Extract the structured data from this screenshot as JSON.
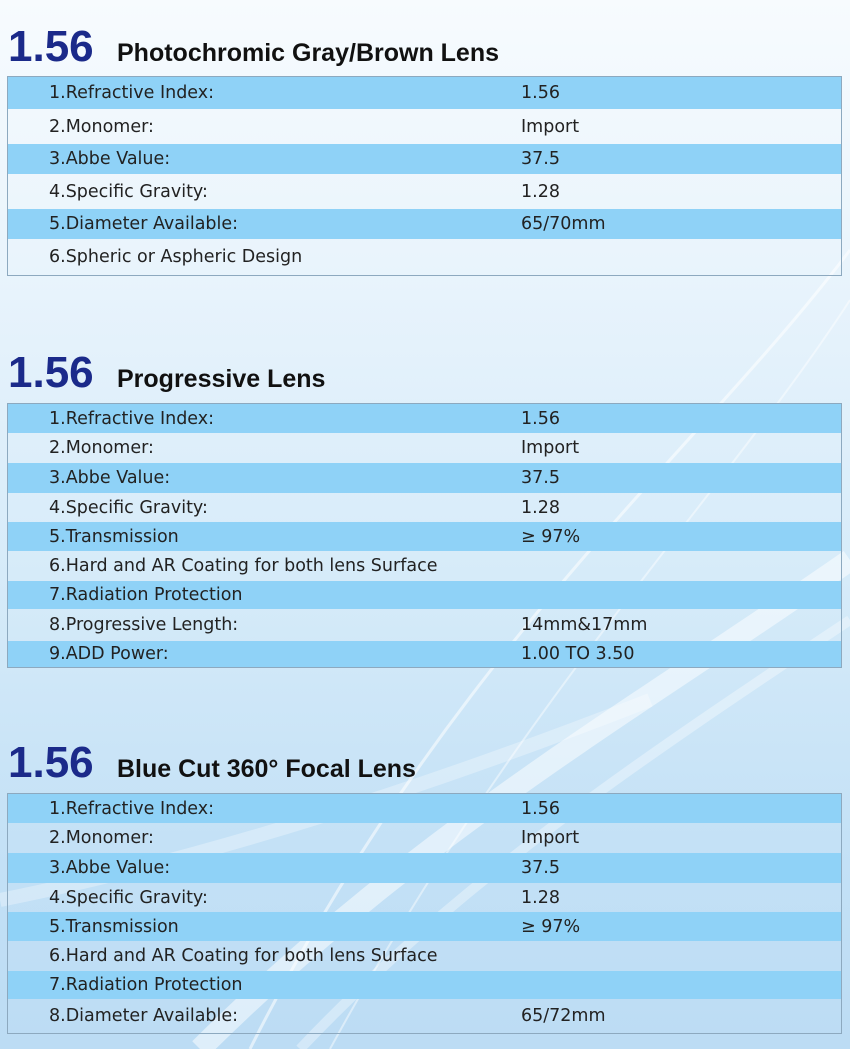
{
  "sections": [
    {
      "number": "1.56",
      "name": "Photochromic Gray/Brown Lens",
      "rows": [
        {
          "label": "1.Refractive Index:",
          "value": "1.56"
        },
        {
          "label": "2.Monomer:",
          "value": "Import"
        },
        {
          "label": "3.Abbe Value:",
          "value": "37.5"
        },
        {
          "label": "4.Specific Gravity:",
          "value": "1.28"
        },
        {
          "label": "5.Diameter Available:",
          "value": "65/70mm"
        },
        {
          "label": "6.Spheric or Aspheric Design",
          "value": ""
        }
      ]
    },
    {
      "number": "1.56",
      "name": "Progressive Lens",
      "rows": [
        {
          "label": "1.Refractive Index:",
          "value": "1.56"
        },
        {
          "label": "2.Monomer:",
          "value": "Import"
        },
        {
          "label": "3.Abbe Value:",
          "value": "37.5"
        },
        {
          "label": "4.Specific Gravity:",
          "value": "1.28"
        },
        {
          "label": "5.Transmission",
          "value": "≥ 97%"
        },
        {
          "label": "6.Hard and AR Coating for both lens Surface",
          "value": ""
        },
        {
          "label": "7.Radiation Protection",
          "value": ""
        },
        {
          "label": "8.Progressive Length:",
          "value": "14mm&17mm"
        },
        {
          "label": "9.ADD Power:",
          "value": "1.00 TO 3.50"
        }
      ]
    },
    {
      "number": "1.56",
      "name": "Blue Cut 360° Focal Lens",
      "rows": [
        {
          "label": "1.Refractive Index:",
          "value": "1.56"
        },
        {
          "label": "2.Monomer:",
          "value": "Import"
        },
        {
          "label": "3.Abbe Value:",
          "value": "37.5"
        },
        {
          "label": "4.Specific Gravity:",
          "value": "1.28"
        },
        {
          "label": "5.Transmission",
          "value": "≥ 97%"
        },
        {
          "label": "6.Hard and AR Coating for both lens Surface",
          "value": ""
        },
        {
          "label": "7.Radiation Protection",
          "value": ""
        },
        {
          "label": "8.Diameter Available:",
          "value": "65/72mm"
        }
      ]
    }
  ],
  "colors": {
    "heading_number": "#1b2a8a",
    "stripe": "#8fd2f7",
    "border": "#8da9bf"
  }
}
